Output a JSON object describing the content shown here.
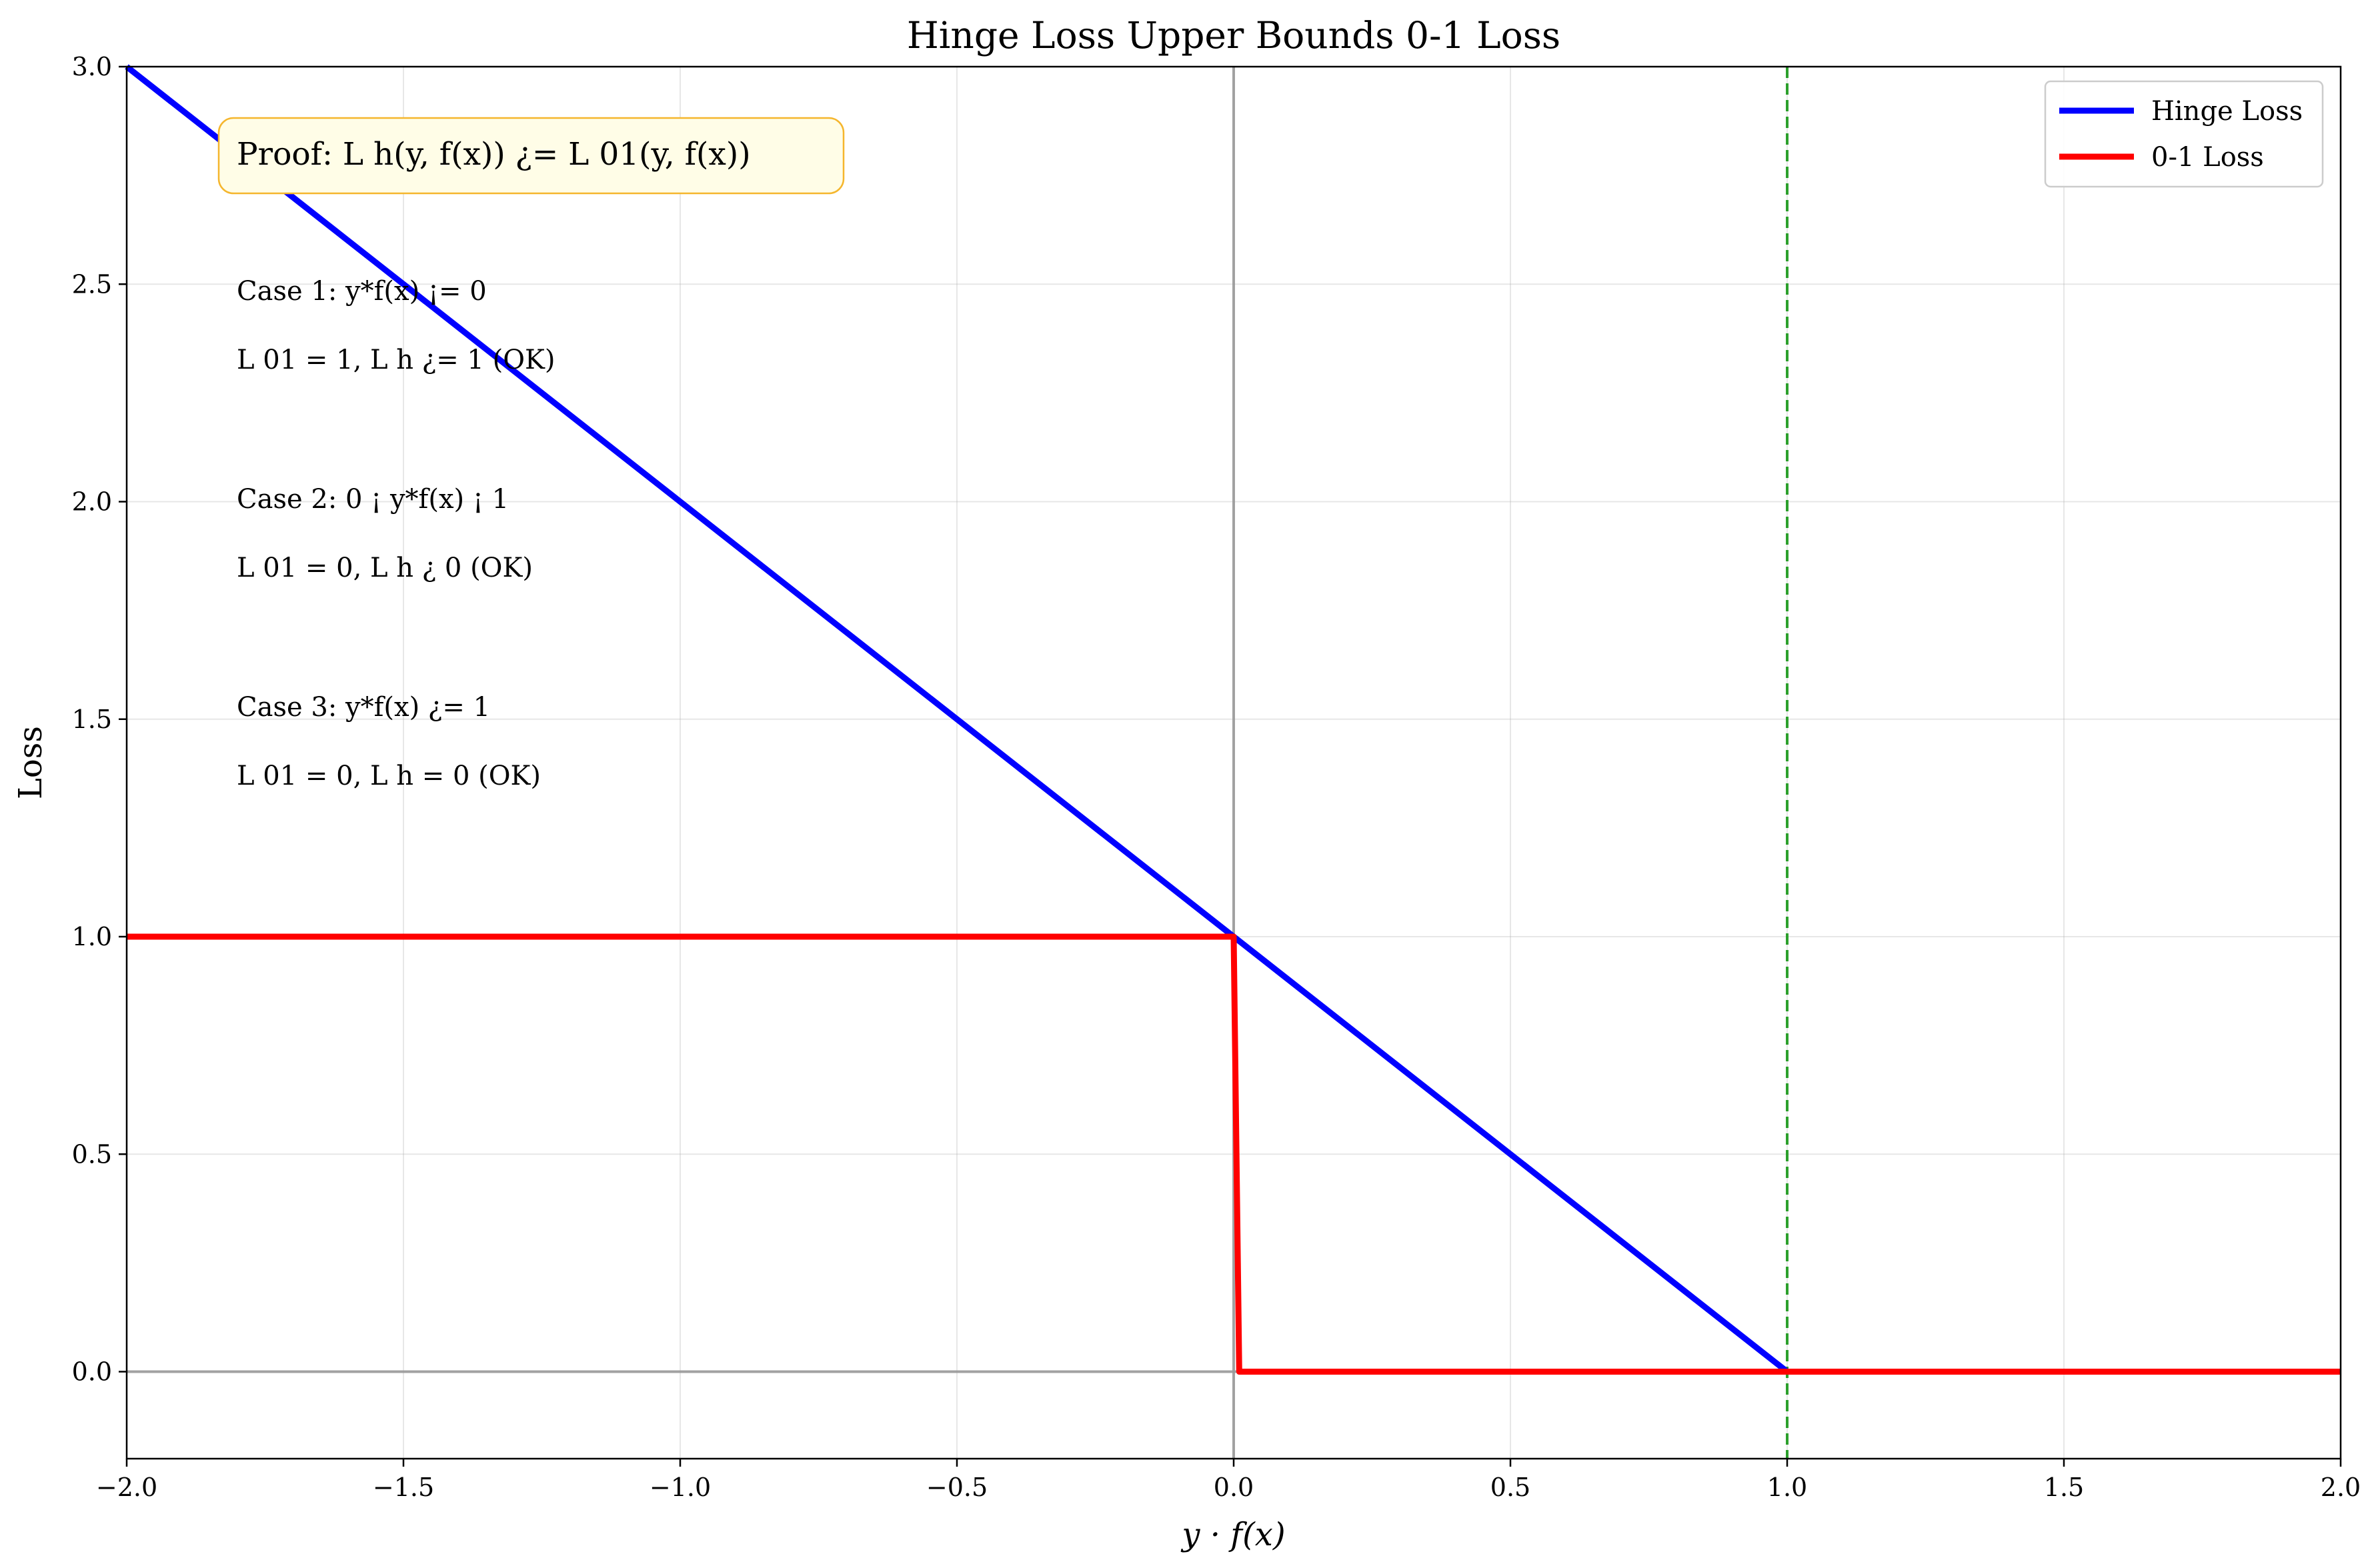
{
  "chart_data": {
    "type": "line",
    "title": "Hinge Loss Upper Bounds 0-1 Loss",
    "xlabel": "y · f(x)",
    "ylabel": "Loss",
    "xlim": [
      -2.0,
      2.0
    ],
    "ylim": [
      -0.2,
      3.0
    ],
    "x_ticks": [
      -2.0,
      -1.5,
      -1.0,
      -0.5,
      0.0,
      0.5,
      1.0,
      1.5,
      2.0
    ],
    "x_tick_labels": [
      "−2.0",
      "−1.5",
      "−1.0",
      "−0.5",
      "0.0",
      "0.5",
      "1.0",
      "1.5",
      "2.0"
    ],
    "y_ticks": [
      0.0,
      0.5,
      1.0,
      1.5,
      2.0,
      2.5,
      3.0
    ],
    "y_tick_labels": [
      "0.0",
      "0.5",
      "1.0",
      "1.5",
      "2.0",
      "2.5",
      "3.0"
    ],
    "grid": true,
    "legend_position": "top-right",
    "series": [
      {
        "name": "Hinge Loss",
        "color": "#0000ff",
        "x": [
          -2.0,
          1.0,
          2.0
        ],
        "y": [
          3.0,
          0.0,
          0.0
        ]
      },
      {
        "name": "0-1 Loss",
        "color": "#ff0000",
        "x": [
          -2.0,
          0.0,
          0.01,
          2.0
        ],
        "y": [
          1.0,
          1.0,
          0.0,
          0.0
        ]
      }
    ],
    "reference_lines": [
      {
        "orientation": "horizontal",
        "value": 0.0,
        "color": "#999999",
        "style": "solid"
      },
      {
        "orientation": "vertical",
        "value": 0.0,
        "color": "#999999",
        "style": "solid"
      },
      {
        "orientation": "vertical",
        "value": 1.0,
        "color": "#2ca02c",
        "style": "dashed"
      }
    ],
    "proof_box": {
      "text": "Proof: L h(y, f(x)) ¿= L 01(y, f(x))",
      "background": "#fffde7",
      "border": "#f5b62d"
    },
    "annotations": [
      "Case 1: y*f(x) ¡= 0",
      "L 01 = 1, L h ¿= 1 (OK)",
      "Case 2: 0 ¡ y*f(x) ¡ 1",
      "L 01 = 0, L h ¿ 0 (OK)",
      "Case 3: y*f(x) ¿= 1",
      "L 01 = 0, L h = 0 (OK)"
    ]
  }
}
